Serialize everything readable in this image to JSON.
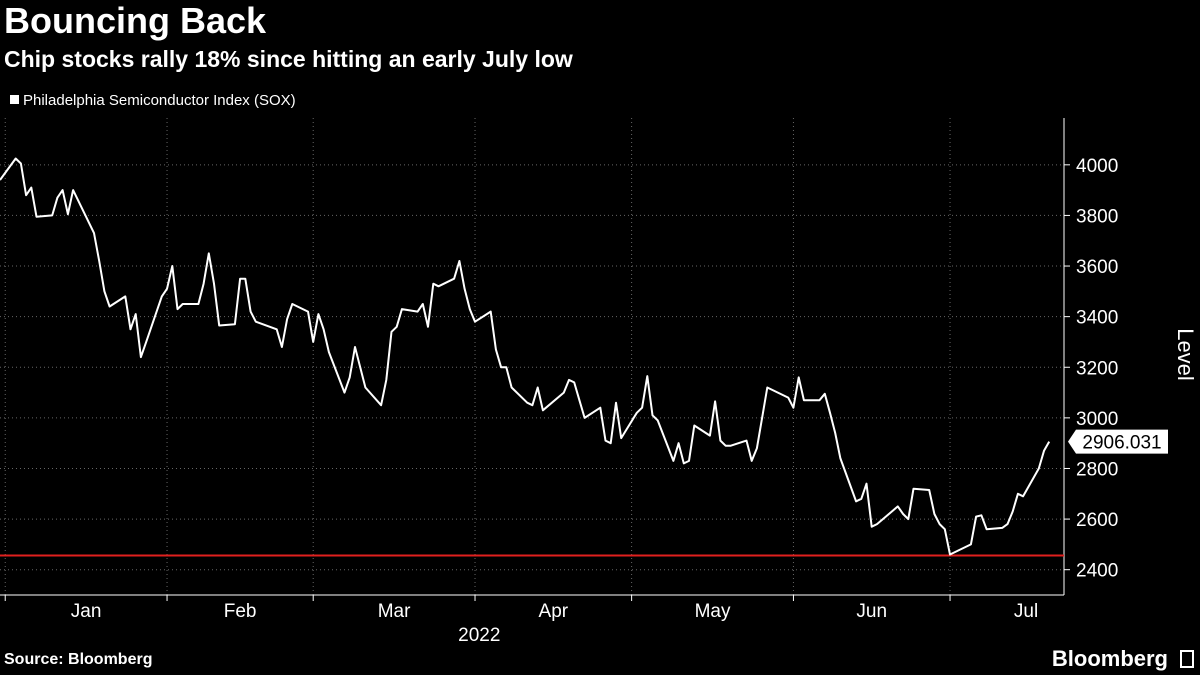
{
  "title": "Bouncing Back",
  "subtitle": "Chip stocks rally 18% since hitting an early July low",
  "legend_label": "Philadelphia Semiconductor Index (SOX)",
  "source": "Source: Bloomberg",
  "brand": "Bloomberg",
  "colors": {
    "background": "#000000",
    "line": "#ffffff",
    "reference_line": "#e0201e",
    "grid": "#666666"
  },
  "chart_data": {
    "type": "line",
    "title": "Bouncing Back",
    "subtitle": "Chip stocks rally 18% since hitting an early July low",
    "ylabel": "Level",
    "xlabel": "2022",
    "x_ticks": [
      "Jan",
      "Feb",
      "Mar",
      "Apr",
      "May",
      "Jun",
      "Jul"
    ],
    "y_ticks": [
      2400,
      2600,
      2800,
      3000,
      3200,
      3400,
      3600,
      3800,
      4000
    ],
    "ylim": [
      2300,
      4185
    ],
    "xlim": [
      "2021-12-31",
      "2022-07-19"
    ],
    "reference_line": 2456,
    "last_value_label": "2906.031",
    "grid": true,
    "legend_position": "top-left",
    "series": [
      {
        "name": "Philadelphia Semiconductor Index (SOX)",
        "points": [
          [
            "2021-12-31",
            3940
          ],
          [
            "2022-01-03",
            4025
          ],
          [
            "2022-01-04",
            4005
          ],
          [
            "2022-01-05",
            3880
          ],
          [
            "2022-01-06",
            3910
          ],
          [
            "2022-01-07",
            3795
          ],
          [
            "2022-01-10",
            3800
          ],
          [
            "2022-01-11",
            3870
          ],
          [
            "2022-01-12",
            3900
          ],
          [
            "2022-01-13",
            3805
          ],
          [
            "2022-01-14",
            3900
          ],
          [
            "2022-01-18",
            3730
          ],
          [
            "2022-01-19",
            3620
          ],
          [
            "2022-01-20",
            3500
          ],
          [
            "2022-01-21",
            3440
          ],
          [
            "2022-01-24",
            3480
          ],
          [
            "2022-01-25",
            3350
          ],
          [
            "2022-01-26",
            3410
          ],
          [
            "2022-01-27",
            3240
          ],
          [
            "2022-01-28",
            3300
          ],
          [
            "2022-01-31",
            3480
          ],
          [
            "2022-02-01",
            3510
          ],
          [
            "2022-02-02",
            3600
          ],
          [
            "2022-02-03",
            3430
          ],
          [
            "2022-02-04",
            3450
          ],
          [
            "2022-02-07",
            3450
          ],
          [
            "2022-02-08",
            3530
          ],
          [
            "2022-02-09",
            3650
          ],
          [
            "2022-02-10",
            3530
          ],
          [
            "2022-02-11",
            3365
          ],
          [
            "2022-02-14",
            3370
          ],
          [
            "2022-02-15",
            3550
          ],
          [
            "2022-02-16",
            3550
          ],
          [
            "2022-02-17",
            3420
          ],
          [
            "2022-02-18",
            3380
          ],
          [
            "2022-02-22",
            3350
          ],
          [
            "2022-02-23",
            3280
          ],
          [
            "2022-02-24",
            3390
          ],
          [
            "2022-02-25",
            3450
          ],
          [
            "2022-02-28",
            3420
          ],
          [
            "2022-03-01",
            3300
          ],
          [
            "2022-03-02",
            3410
          ],
          [
            "2022-03-03",
            3350
          ],
          [
            "2022-03-04",
            3260
          ],
          [
            "2022-03-07",
            3100
          ],
          [
            "2022-03-08",
            3160
          ],
          [
            "2022-03-09",
            3280
          ],
          [
            "2022-03-10",
            3200
          ],
          [
            "2022-03-11",
            3120
          ],
          [
            "2022-03-14",
            3050
          ],
          [
            "2022-03-15",
            3150
          ],
          [
            "2022-03-16",
            3340
          ],
          [
            "2022-03-17",
            3360
          ],
          [
            "2022-03-18",
            3430
          ],
          [
            "2022-03-21",
            3420
          ],
          [
            "2022-03-22",
            3450
          ],
          [
            "2022-03-23",
            3360
          ],
          [
            "2022-03-24",
            3530
          ],
          [
            "2022-03-25",
            3520
          ],
          [
            "2022-03-28",
            3550
          ],
          [
            "2022-03-29",
            3620
          ],
          [
            "2022-03-30",
            3510
          ],
          [
            "2022-03-31",
            3430
          ],
          [
            "2022-04-01",
            3380
          ],
          [
            "2022-04-04",
            3420
          ],
          [
            "2022-04-05",
            3270
          ],
          [
            "2022-04-06",
            3200
          ],
          [
            "2022-04-07",
            3200
          ],
          [
            "2022-04-08",
            3120
          ],
          [
            "2022-04-11",
            3060
          ],
          [
            "2022-04-12",
            3050
          ],
          [
            "2022-04-13",
            3120
          ],
          [
            "2022-04-14",
            3030
          ],
          [
            "2022-04-18",
            3100
          ],
          [
            "2022-04-19",
            3150
          ],
          [
            "2022-04-20",
            3140
          ],
          [
            "2022-04-21",
            3070
          ],
          [
            "2022-04-22",
            3000
          ],
          [
            "2022-04-25",
            3040
          ],
          [
            "2022-04-26",
            2910
          ],
          [
            "2022-04-27",
            2900
          ],
          [
            "2022-04-28",
            3060
          ],
          [
            "2022-04-29",
            2920
          ],
          [
            "2022-05-02",
            3020
          ],
          [
            "2022-05-03",
            3040
          ],
          [
            "2022-05-04",
            3165
          ],
          [
            "2022-05-05",
            3010
          ],
          [
            "2022-05-06",
            2990
          ],
          [
            "2022-05-09",
            2830
          ],
          [
            "2022-05-10",
            2900
          ],
          [
            "2022-05-11",
            2820
          ],
          [
            "2022-05-12",
            2830
          ],
          [
            "2022-05-13",
            2970
          ],
          [
            "2022-05-16",
            2930
          ],
          [
            "2022-05-17",
            3065
          ],
          [
            "2022-05-18",
            2910
          ],
          [
            "2022-05-19",
            2890
          ],
          [
            "2022-05-20",
            2890
          ],
          [
            "2022-05-23",
            2910
          ],
          [
            "2022-05-24",
            2830
          ],
          [
            "2022-05-25",
            2880
          ],
          [
            "2022-05-26",
            3000
          ],
          [
            "2022-05-27",
            3120
          ],
          [
            "2022-05-31",
            3080
          ],
          [
            "2022-06-01",
            3040
          ],
          [
            "2022-06-02",
            3160
          ],
          [
            "2022-06-03",
            3070
          ],
          [
            "2022-06-06",
            3070
          ],
          [
            "2022-06-07",
            3095
          ],
          [
            "2022-06-08",
            3020
          ],
          [
            "2022-06-09",
            2940
          ],
          [
            "2022-06-10",
            2840
          ],
          [
            "2022-06-13",
            2670
          ],
          [
            "2022-06-14",
            2680
          ],
          [
            "2022-06-15",
            2740
          ],
          [
            "2022-06-16",
            2570
          ],
          [
            "2022-06-17",
            2580
          ],
          [
            "2022-06-21",
            2650
          ],
          [
            "2022-06-22",
            2620
          ],
          [
            "2022-06-23",
            2600
          ],
          [
            "2022-06-24",
            2720
          ],
          [
            "2022-06-27",
            2715
          ],
          [
            "2022-06-28",
            2620
          ],
          [
            "2022-06-29",
            2580
          ],
          [
            "2022-06-30",
            2560
          ],
          [
            "2022-07-01",
            2460
          ],
          [
            "2022-07-05",
            2500
          ],
          [
            "2022-07-06",
            2610
          ],
          [
            "2022-07-07",
            2615
          ],
          [
            "2022-07-08",
            2560
          ],
          [
            "2022-07-11",
            2565
          ],
          [
            "2022-07-12",
            2580
          ],
          [
            "2022-07-13",
            2630
          ],
          [
            "2022-07-14",
            2700
          ],
          [
            "2022-07-15",
            2690
          ],
          [
            "2022-07-18",
            2800
          ],
          [
            "2022-07-19",
            2870
          ],
          [
            "2022-07-20",
            2906.031
          ]
        ]
      }
    ]
  }
}
